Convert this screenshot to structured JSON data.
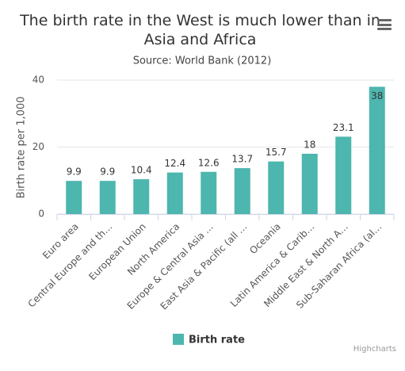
{
  "chart_data": {
    "type": "bar",
    "title": "The birth rate in the West is much lower than in Asia and Africa",
    "subtitle": "Source: World Bank (2012)",
    "y_axis_label": "Birth rate per 1,000",
    "categories": [
      "Euro area",
      "Central Europe and th…",
      "European Union",
      "North America",
      "Europe & Central Asia …",
      "East Asia & Pacific (all …",
      "Oceania",
      "Latin America & Carib…",
      "Middle East & North A…",
      "Sub-Saharan Africa (al…"
    ],
    "series": [
      {
        "name": "Birth rate",
        "color": "#4db6ae",
        "values": [
          9.9,
          9.9,
          10.4,
          12.4,
          12.6,
          13.7,
          15.7,
          18,
          23.1,
          38
        ]
      }
    ],
    "ylim": [
      0,
      40
    ],
    "yticks": [
      0,
      20,
      40
    ],
    "grid": true,
    "legend": "bottom",
    "credits": "Highcharts"
  }
}
